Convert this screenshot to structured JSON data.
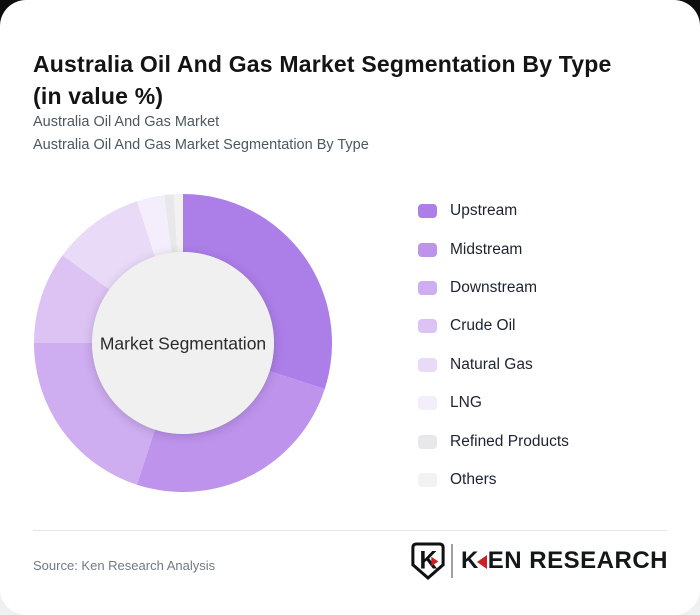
{
  "page": {
    "title": "Australia Oil And Gas Market Segmentation By Type\n(in value %)",
    "subtitle1": "Australia Oil And Gas Market",
    "subtitle2": "Australia Oil And Gas Market Segmentation By Type",
    "source": "Source: Ken Research Analysis"
  },
  "logo": {
    "shield_letter": "K",
    "brand_k": "K",
    "brand_rest": "EN RESEARCH",
    "accent_red": "#cb2026"
  },
  "chart_data": {
    "type": "pie",
    "variant": "donut",
    "title": "Australia Oil And Gas Market Segmentation By Type (in value %)",
    "center_label": "Market Segmentation",
    "legend_position": "right",
    "start_angle_deg": 0,
    "direction": "clockwise",
    "units": "%",
    "segments": [
      {
        "label": "Upstream",
        "value": 30,
        "color": "#ac7ee8"
      },
      {
        "label": "Midstream",
        "value": 25,
        "color": "#bd93ec"
      },
      {
        "label": "Downstream",
        "value": 20,
        "color": "#ceadf0"
      },
      {
        "label": "Crude Oil",
        "value": 10,
        "color": "#dcc3f4"
      },
      {
        "label": "Natural Gas",
        "value": 10,
        "color": "#e9daf8"
      },
      {
        "label": "LNG",
        "value": 3,
        "color": "#f3edfc"
      },
      {
        "label": "Refined Products",
        "value": 1,
        "color": "#e8e7e9"
      },
      {
        "label": "Others",
        "value": 1,
        "color": "#f2f1f3"
      }
    ],
    "inner_circle_color": "#f0f0f0",
    "outer_radius_px": 149,
    "inner_radius_px": 91
  }
}
